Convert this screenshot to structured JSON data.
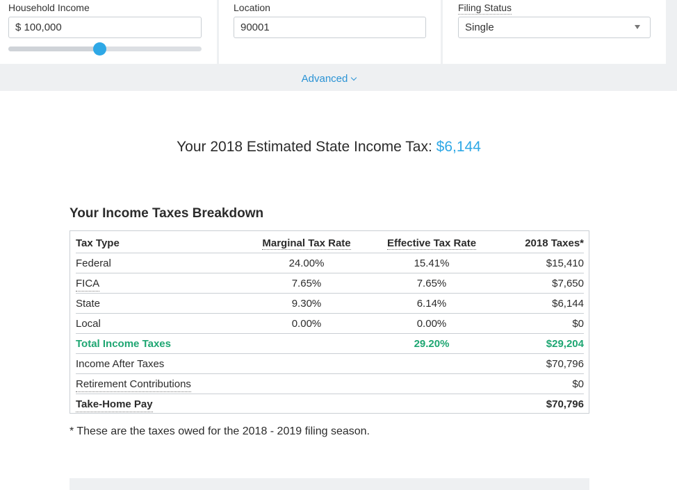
{
  "inputs": {
    "income": {
      "label": "Household Income",
      "value": "$ 100,000",
      "slider_fraction": 0.47
    },
    "location": {
      "label": "Location",
      "value": "90001"
    },
    "filing": {
      "label": "Filing Status",
      "value": "Single"
    }
  },
  "advanced_label": "Advanced",
  "headline": {
    "prefix": "Your 2018 Estimated State Income Tax:",
    "amount": "$6,144"
  },
  "breakdown": {
    "title": "Your Income Taxes Breakdown",
    "headers": {
      "type": "Tax Type",
      "marginal": "Marginal Tax Rate",
      "effective": "Effective Tax Rate",
      "taxes": "2018 Taxes*"
    },
    "rows": [
      {
        "type": "Federal",
        "marginal": "24.00%",
        "effective": "15.41%",
        "taxes": "$15,410"
      },
      {
        "type": "FICA",
        "marginal": "7.65%",
        "effective": "7.65%",
        "taxes": "$7,650"
      },
      {
        "type": "State",
        "marginal": "9.30%",
        "effective": "6.14%",
        "taxes": "$6,144"
      },
      {
        "type": "Local",
        "marginal": "0.00%",
        "effective": "0.00%",
        "taxes": "$0"
      }
    ],
    "total": {
      "type": "Total Income Taxes",
      "effective": "29.20%",
      "taxes": "$29,204"
    },
    "after_taxes": {
      "type": "Income After Taxes",
      "taxes": "$70,796"
    },
    "retirement": {
      "type": "Retirement Contributions",
      "taxes": "$0"
    },
    "take_home": {
      "type": "Take-Home Pay",
      "taxes": "$70,796"
    }
  },
  "footnote": "* These are the taxes owed for the 2018 - 2019 filing season.",
  "colors": {
    "accent": "#2ea8e6",
    "total": "#1ea672"
  }
}
